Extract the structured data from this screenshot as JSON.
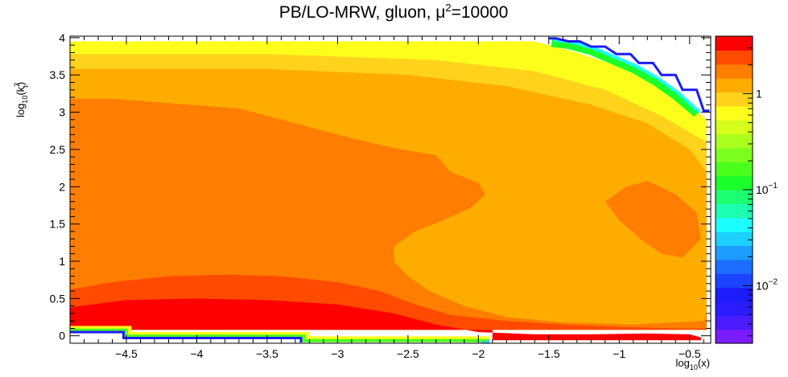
{
  "chart_data": {
    "type": "heatmap",
    "title": "PB/LO-MRW, gluon, μ²=10000",
    "title_parts": {
      "prefix": "PB/LO-MRW, gluon, μ",
      "sup": "2",
      "suffix": "=10000"
    },
    "xlabel": "log10(x)",
    "xlabel_parts": {
      "base": "log",
      "sub": "10",
      "rest": "(x)"
    },
    "ylabel": "log10(k_t^2)",
    "ylabel_parts": {
      "base": "log",
      "sub": "10",
      "open": "(k",
      "sup": "2",
      "sub2": "t",
      "close": ")"
    },
    "xlim": [
      -4.9,
      -0.35
    ],
    "ylim": [
      -0.1,
      4.02
    ],
    "x_ticks": [
      {
        "v": -4.5,
        "label": "−4.5"
      },
      {
        "v": -4,
        "label": "−4"
      },
      {
        "v": -3.5,
        "label": "−3.5"
      },
      {
        "v": -3,
        "label": "−3"
      },
      {
        "v": -2.5,
        "label": "−2.5"
      },
      {
        "v": -2,
        "label": "−2"
      },
      {
        "v": -1.5,
        "label": "−1.5"
      },
      {
        "v": -1,
        "label": "−1"
      },
      {
        "v": -0.5,
        "label": "−0.5"
      }
    ],
    "y_ticks": [
      {
        "v": 0,
        "label": "0"
      },
      {
        "v": 0.5,
        "label": "0.5"
      },
      {
        "v": 1,
        "label": "1"
      },
      {
        "v": 1.5,
        "label": "1.5"
      },
      {
        "v": 2,
        "label": "2"
      },
      {
        "v": 2.5,
        "label": "2.5"
      },
      {
        "v": 3,
        "label": "3"
      },
      {
        "v": 3.5,
        "label": "3.5"
      },
      {
        "v": 4,
        "label": "4"
      }
    ],
    "colorbar": {
      "log_range": [
        -2.6,
        0.6
      ],
      "ticks": [
        {
          "v": 1,
          "label": "1"
        },
        {
          "v": 0.1,
          "label": "10",
          "sup": "−1"
        },
        {
          "v": 0.01,
          "label": "10",
          "sup": "−2"
        }
      ],
      "colors": [
        "#7a1cff",
        "#4b1cff",
        "#2a1cff",
        "#1c1cff",
        "#1c44ff",
        "#1c6cff",
        "#1c9cff",
        "#1cd0ff",
        "#1cffff",
        "#1cffb0",
        "#1cff70",
        "#1cff2a",
        "#4bff1c",
        "#7cff1c",
        "#aaff1c",
        "#d6ff1c",
        "#ffff1c",
        "#ffd21c",
        "#ffac00",
        "#ff7d00",
        "#ff4a00",
        "#ff0000"
      ]
    },
    "regions": [
      {
        "color": "#ffff1c",
        "poly": [
          [
            -4.9,
            0.08
          ],
          [
            -0.38,
            0.08
          ],
          [
            -0.38,
            2.9
          ],
          [
            -0.6,
            3.25
          ],
          [
            -0.9,
            3.55
          ],
          [
            -1.3,
            3.8
          ],
          [
            -1.6,
            3.95
          ],
          [
            -4.9,
            3.95
          ]
        ]
      },
      {
        "color": "#ffd21c",
        "poly": [
          [
            -4.9,
            0.08
          ],
          [
            -0.38,
            0.08
          ],
          [
            -0.38,
            2.6
          ],
          [
            -0.7,
            2.95
          ],
          [
            -1.1,
            3.3
          ],
          [
            -1.6,
            3.55
          ],
          [
            -2.3,
            3.7
          ],
          [
            -3.5,
            3.78
          ],
          [
            -4.9,
            3.78
          ]
        ]
      },
      {
        "color": "#ffac00",
        "poly": [
          [
            -4.9,
            0.08
          ],
          [
            -0.38,
            0.08
          ],
          [
            -0.38,
            2.2
          ],
          [
            -0.5,
            2.5
          ],
          [
            -0.8,
            2.85
          ],
          [
            -1.2,
            3.1
          ],
          [
            -1.8,
            3.35
          ],
          [
            -2.5,
            3.5
          ],
          [
            -3.5,
            3.58
          ],
          [
            -4.9,
            3.58
          ]
        ]
      },
      {
        "color": "#ff7d00",
        "poly": [
          [
            -4.9,
            0.2
          ],
          [
            -4.9,
            3.18
          ],
          [
            -4.6,
            3.18
          ],
          [
            -4.2,
            3.12
          ],
          [
            -3.7,
            3.05
          ],
          [
            -3.3,
            2.85
          ],
          [
            -2.9,
            2.65
          ],
          [
            -2.6,
            2.52
          ],
          [
            -2.3,
            2.42
          ],
          [
            -2.2,
            2.2
          ],
          [
            -2.0,
            2.05
          ],
          [
            -1.95,
            1.9
          ],
          [
            -2.05,
            1.72
          ],
          [
            -2.25,
            1.55
          ],
          [
            -2.45,
            1.4
          ],
          [
            -2.6,
            1.2
          ],
          [
            -2.6,
            1.0
          ],
          [
            -2.5,
            0.8
          ],
          [
            -2.35,
            0.6
          ],
          [
            -2.1,
            0.4
          ],
          [
            -1.8,
            0.25
          ],
          [
            -1.4,
            0.18
          ],
          [
            -0.9,
            0.15
          ],
          [
            -0.4,
            0.2
          ],
          [
            -0.38,
            0.3
          ],
          [
            -0.38,
            0.08
          ],
          [
            -4.9,
            0.08
          ]
        ]
      },
      {
        "color": "#ff7d00",
        "poly": [
          [
            -0.95,
            2.0
          ],
          [
            -0.8,
            2.08
          ],
          [
            -0.6,
            1.9
          ],
          [
            -0.45,
            1.65
          ],
          [
            -0.42,
            1.3
          ],
          [
            -0.55,
            1.05
          ],
          [
            -0.7,
            1.1
          ],
          [
            -0.85,
            1.3
          ],
          [
            -1.0,
            1.55
          ],
          [
            -1.1,
            1.8
          ]
        ]
      },
      {
        "color": "#ff4a00",
        "poly": [
          [
            -4.9,
            0.08
          ],
          [
            -4.9,
            0.62
          ],
          [
            -4.6,
            0.72
          ],
          [
            -4.2,
            0.8
          ],
          [
            -3.8,
            0.82
          ],
          [
            -3.4,
            0.8
          ],
          [
            -3.0,
            0.72
          ],
          [
            -2.7,
            0.6
          ],
          [
            -2.45,
            0.42
          ],
          [
            -2.2,
            0.28
          ],
          [
            -1.8,
            0.2
          ],
          [
            -1.4,
            0.15
          ],
          [
            -1.0,
            0.12
          ],
          [
            -0.6,
            0.1
          ],
          [
            -0.38,
            0.1
          ],
          [
            -0.38,
            0.08
          ]
        ]
      },
      {
        "color": "#ff0000",
        "poly": [
          [
            -4.9,
            0.08
          ],
          [
            -4.9,
            0.38
          ],
          [
            -4.5,
            0.48
          ],
          [
            -4.0,
            0.5
          ],
          [
            -3.5,
            0.48
          ],
          [
            -3.0,
            0.42
          ],
          [
            -2.6,
            0.3
          ],
          [
            -2.3,
            0.15
          ],
          [
            -2.0,
            0.05
          ],
          [
            -1.6,
            0.02
          ],
          [
            -1.2,
            0.02
          ],
          [
            -0.8,
            0.03
          ],
          [
            -0.5,
            0.02
          ],
          [
            -0.42,
            -0.02
          ],
          [
            -0.42,
            -0.06
          ],
          [
            -1.9,
            -0.06
          ],
          [
            -1.9,
            0.08
          ]
        ]
      },
      {
        "color": "#ffffff",
        "poly": [
          [
            -4.9,
            -0.1
          ],
          [
            -4.9,
            0.05
          ],
          [
            -4.5,
            0.05
          ],
          [
            -4.5,
            -0.06
          ],
          [
            -3.2,
            -0.06
          ],
          [
            -3.2,
            -0.1
          ]
        ]
      },
      {
        "color": "#ffffff",
        "poly": [
          [
            -1.5,
            4.02
          ],
          [
            -1.4,
            3.98
          ],
          [
            -1.2,
            3.92
          ],
          [
            -1.0,
            3.78
          ],
          [
            -0.85,
            3.65
          ],
          [
            -0.7,
            3.5
          ],
          [
            -0.55,
            3.3
          ],
          [
            -0.4,
            3.0
          ],
          [
            -0.35,
            2.95
          ],
          [
            -0.35,
            4.02
          ]
        ]
      }
    ],
    "boundary_lines": [
      {
        "color": "#ffff1c",
        "w": 6,
        "pts": [
          [
            -4.9,
            0.1
          ],
          [
            -4.48,
            0.1
          ],
          [
            -4.48,
            0.02
          ],
          [
            -3.22,
            0.02
          ],
          [
            -3.22,
            -0.04
          ],
          [
            -1.92,
            -0.04
          ]
        ]
      },
      {
        "color": "#4bff1c",
        "w": 4,
        "pts": [
          [
            -4.9,
            0.075
          ],
          [
            -4.5,
            0.075
          ],
          [
            -4.5,
            -0.005
          ],
          [
            -3.24,
            -0.005
          ],
          [
            -3.24,
            -0.065
          ],
          [
            -1.94,
            -0.065
          ]
        ]
      },
      {
        "color": "#1c1cff",
        "w": 3,
        "pts": [
          [
            -4.9,
            0.05
          ],
          [
            -4.52,
            0.05
          ],
          [
            -4.52,
            -0.03
          ],
          [
            -3.26,
            -0.03
          ],
          [
            -3.26,
            -0.09
          ]
        ]
      },
      {
        "color": "#1cd0ff",
        "w": 3,
        "pts": [
          [
            -1.98,
            -0.09
          ],
          [
            -1.93,
            -0.09
          ],
          [
            -1.93,
            -0.05
          ]
        ]
      },
      {
        "color": "#1cff2a",
        "w": 10,
        "pts": [
          [
            -1.48,
            3.93
          ],
          [
            -1.36,
            3.9
          ],
          [
            -1.2,
            3.82
          ],
          [
            -1.05,
            3.7
          ],
          [
            -0.9,
            3.58
          ],
          [
            -0.75,
            3.42
          ],
          [
            -0.6,
            3.22
          ],
          [
            -0.45,
            2.98
          ]
        ]
      },
      {
        "color": "#1cffff",
        "w": 4,
        "pts": [
          [
            -1.46,
            3.97
          ],
          [
            -1.34,
            3.94
          ],
          [
            -1.18,
            3.86
          ],
          [
            -1.03,
            3.74
          ],
          [
            -0.88,
            3.62
          ],
          [
            -0.73,
            3.46
          ],
          [
            -0.58,
            3.26
          ],
          [
            -0.43,
            3.0
          ]
        ]
      },
      {
        "color": "#1c1cff",
        "w": 3,
        "pts": [
          [
            -1.5,
            3.99
          ],
          [
            -1.45,
            3.99
          ],
          [
            -1.36,
            3.95
          ],
          [
            -1.28,
            3.95
          ],
          [
            -1.2,
            3.88
          ],
          [
            -1.1,
            3.88
          ],
          [
            -1.02,
            3.78
          ],
          [
            -0.92,
            3.78
          ],
          [
            -0.86,
            3.66
          ],
          [
            -0.76,
            3.66
          ],
          [
            -0.7,
            3.5
          ],
          [
            -0.6,
            3.5
          ],
          [
            -0.55,
            3.3
          ],
          [
            -0.45,
            3.3
          ],
          [
            -0.4,
            3.02
          ],
          [
            -0.36,
            3.02
          ]
        ]
      }
    ]
  }
}
